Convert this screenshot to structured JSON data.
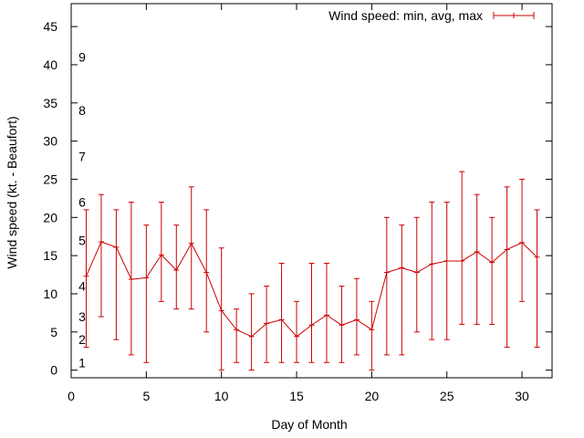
{
  "chart_data": {
    "type": "line",
    "xlabel": "Day of Month",
    "ylabel": "Wind speed (kt. - Beaufort)",
    "xlim": [
      0,
      32
    ],
    "ylim": [
      -1,
      48
    ],
    "xticks": [
      "0",
      "5",
      "10",
      "15",
      "20",
      "25",
      "30"
    ],
    "yticks": [
      "0",
      "5",
      "10",
      "15",
      "20",
      "25",
      "30",
      "35",
      "40",
      "45"
    ],
    "beaufort_labels": [
      {
        "label": "1",
        "y": 1
      },
      {
        "label": "2",
        "y": 4
      },
      {
        "label": "3",
        "y": 7
      },
      {
        "label": "4",
        "y": 11
      },
      {
        "label": "5",
        "y": 17
      },
      {
        "label": "6",
        "y": 22
      },
      {
        "label": "7",
        "y": 28
      },
      {
        "label": "8",
        "y": 34
      },
      {
        "label": "9",
        "y": 41
      }
    ],
    "grid": false,
    "legend_position": "top-right",
    "series": [
      {
        "name": "Wind speed: min, avg, max",
        "color": "#cc0000",
        "x": [
          1,
          2,
          3,
          4,
          5,
          6,
          7,
          8,
          9,
          10,
          11,
          12,
          13,
          14,
          15,
          16,
          17,
          18,
          19,
          20,
          21,
          22,
          23,
          24,
          25,
          26,
          27,
          28,
          29,
          30,
          31
        ],
        "avg": [
          12.3,
          16.8,
          16.1,
          11.9,
          12.1,
          15.1,
          13.1,
          16.6,
          12.8,
          7.8,
          5.3,
          4.4,
          6.1,
          6.6,
          4.4,
          5.9,
          7.2,
          5.9,
          6.6,
          5.3,
          12.8,
          13.4,
          12.8,
          13.9,
          14.3,
          14.3,
          15.5,
          14.1,
          15.8,
          16.7,
          14.8
        ],
        "min": [
          3,
          7,
          4,
          2,
          1,
          9,
          8,
          8,
          5,
          0,
          1,
          0,
          1,
          1,
          1,
          1,
          1,
          1,
          2,
          0,
          2,
          2,
          5,
          4,
          4,
          6,
          6,
          6,
          3,
          9,
          3
        ],
        "max": [
          21,
          23,
          21,
          22,
          19,
          22,
          19,
          24,
          21,
          16,
          8,
          10,
          11,
          14,
          9,
          14,
          14,
          11,
          12,
          9,
          20,
          19,
          20,
          22,
          22,
          26,
          23,
          20,
          24,
          25,
          21
        ]
      }
    ]
  }
}
